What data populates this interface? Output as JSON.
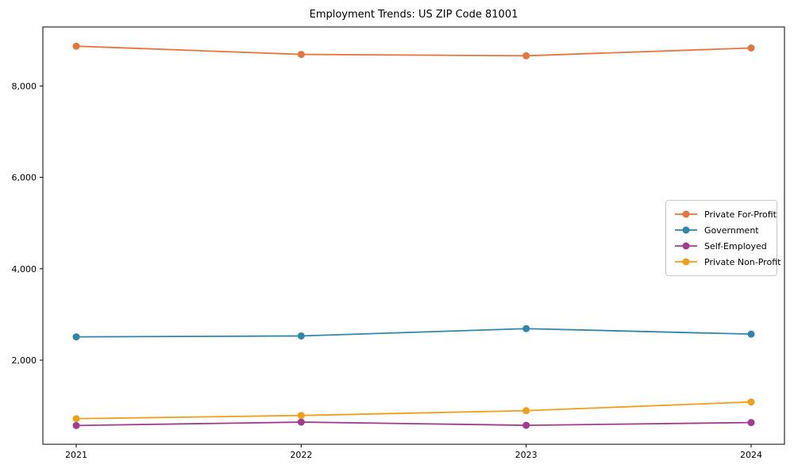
{
  "title": "Employment Trends: US ZIP Code 81001",
  "chart_data": {
    "type": "line",
    "title": "Employment Trends: US ZIP Code 81001",
    "xlabel": "",
    "ylabel": "",
    "grid": false,
    "legend_position": "center-right",
    "x": [
      2021,
      2022,
      2023,
      2024
    ],
    "x_tick_labels": [
      "2021",
      "2022",
      "2023",
      "2024"
    ],
    "y_tick_values": [
      2000,
      4000,
      6000,
      8000
    ],
    "y_tick_labels": [
      "2,000",
      "4,000",
      "6,000",
      "8,000"
    ],
    "ylim": [
      160,
      9290
    ],
    "series": [
      {
        "name": "Private For-Profit",
        "color": "#E8743B",
        "values": [
          8870,
          8690,
          8660,
          8830
        ]
      },
      {
        "name": "Government",
        "color": "#2E86A8",
        "values": [
          2510,
          2530,
          2690,
          2570
        ]
      },
      {
        "name": "Self-Employed",
        "color": "#A23B8C",
        "values": [
          570,
          645,
          575,
          635
        ]
      },
      {
        "name": "Private Non-Profit",
        "color": "#F19E1B",
        "values": [
          720,
          790,
          895,
          1085
        ]
      }
    ]
  }
}
